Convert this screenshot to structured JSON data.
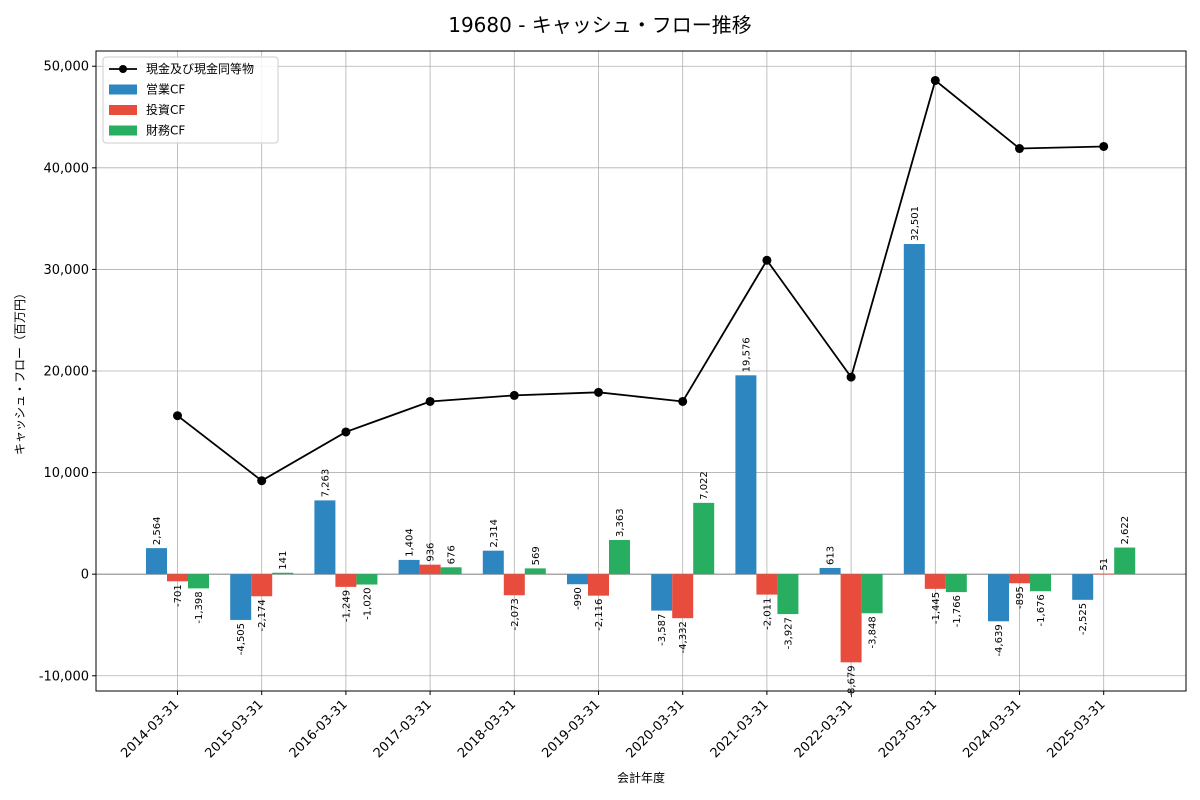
{
  "chart_data": {
    "type": "bar",
    "title": "19680 - キャッシュ・フロー推移",
    "xlabel": "会計年度",
    "ylabel": "キャッシュ・フロー（百万円）",
    "ylim": [
      -11500,
      51500
    ],
    "yticks": [
      -10000,
      0,
      10000,
      20000,
      30000,
      40000,
      50000
    ],
    "ytick_labels": [
      "-10,000",
      "0",
      "10,000",
      "20,000",
      "30,000",
      "40,000",
      "50,000"
    ],
    "grid": true,
    "legend_position": "top-left",
    "categories": [
      "2014-03-31",
      "2015-03-31",
      "2016-03-31",
      "2017-03-31",
      "2018-03-31",
      "2019-03-31",
      "2020-03-31",
      "2021-03-31",
      "2022-03-31",
      "2023-03-31",
      "2024-03-31",
      "2025-03-31"
    ],
    "series": [
      {
        "name": "営業CF",
        "color": "#2e86c1",
        "values": [
          2564,
          -4505,
          7263,
          1404,
          2314,
          -990,
          -3587,
          19576,
          613,
          32501,
          -4639,
          -2525
        ],
        "labels": [
          "2,564",
          "-4,505",
          "7,263",
          "1,404",
          "2,314",
          "-990",
          "-3,587",
          "19,576",
          "613",
          "32,501",
          "-4,639",
          "-2,525"
        ]
      },
      {
        "name": "投資CF",
        "color": "#e74c3c",
        "values": [
          -701,
          -2174,
          -1249,
          936,
          -2073,
          -2116,
          -4332,
          -2011,
          -8679,
          -1445,
          -895,
          51
        ],
        "labels": [
          "-701",
          "-2,174",
          "-1,249",
          "936",
          "-2,073",
          "-2,116",
          "-4,332",
          "-2,011",
          "-8,679",
          "-1,445",
          "-895",
          "51"
        ]
      },
      {
        "name": "財務CF",
        "color": "#27ae60",
        "values": [
          -1398,
          141,
          -1020,
          676,
          569,
          3363,
          7022,
          -3927,
          -3848,
          -1766,
          -1676,
          2622
        ],
        "labels": [
          "-1,398",
          "141",
          "-1,020",
          "676",
          "569",
          "3,363",
          "7,022",
          "-3,927",
          "-3,848",
          "-1,766",
          "-1,676",
          "2,622"
        ]
      }
    ],
    "line": {
      "name": "現金及び現金同等物",
      "color": "#000000",
      "values": [
        15600,
        9200,
        14000,
        17000,
        17600,
        17900,
        17000,
        30900,
        19400,
        48600,
        41900,
        42100
      ]
    }
  }
}
